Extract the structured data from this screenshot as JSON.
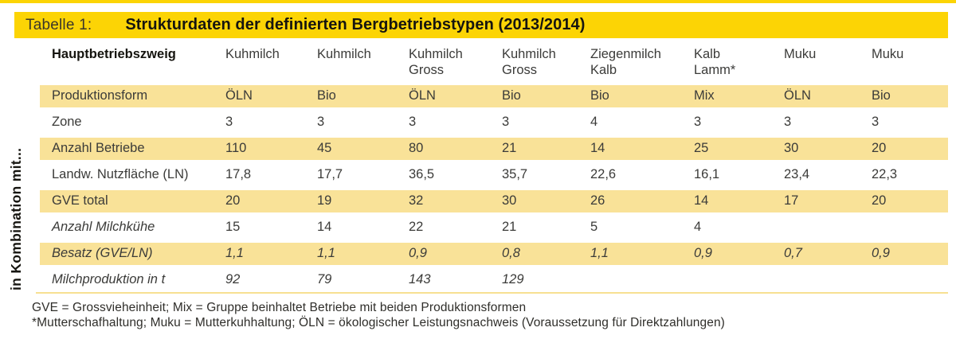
{
  "colors": {
    "accent_yellow": "#fcd405",
    "band_yellow": "#f9e298",
    "separator_yellow": "#f7e092",
    "text_dark": "#3b3b39"
  },
  "title_bar": {
    "label": "Tabelle 1:",
    "title": "Strukturdaten der definierten Bergbetriebstypen (2013/2014)"
  },
  "side_label": "in Kombination mit...",
  "chart_data": {
    "type": "table",
    "title": "Strukturdaten der definierten Bergbetriebstypen (2013/2014)",
    "row_group_label": "in Kombination mit...",
    "header_label": "Hauptbetriebszweig",
    "columns": [
      "Kuhmilch",
      "Kuhmilch",
      "Kuhmilch\nGross",
      "Kuhmilch\nGross",
      "Ziegenmilch\nKalb",
      "Kalb\nLamm*",
      "Muku",
      "Muku"
    ],
    "rows": [
      {
        "label": "Produktionsform",
        "values": [
          "ÖLN",
          "Bio",
          "ÖLN",
          "Bio",
          "Bio",
          "Mix",
          "ÖLN",
          "Bio"
        ],
        "band": true,
        "label_italic": false,
        "values_italic": false
      },
      {
        "label": "Zone",
        "values": [
          "3",
          "3",
          "3",
          "3",
          "4",
          "3",
          "3",
          "3"
        ],
        "band": false,
        "label_italic": false,
        "values_italic": false
      },
      {
        "label": "Anzahl Betriebe",
        "values": [
          "110",
          "45",
          "80",
          "21",
          "14",
          "25",
          "30",
          "20"
        ],
        "band": true,
        "label_italic": false,
        "values_italic": false
      },
      {
        "label": "Landw. Nutzfläche (LN)",
        "values": [
          "17,8",
          "17,7",
          "36,5",
          "35,7",
          "22,6",
          "16,1",
          "23,4",
          "22,3"
        ],
        "band": false,
        "label_italic": false,
        "values_italic": false
      },
      {
        "label": "GVE total",
        "values": [
          "20",
          "19",
          "32",
          "30",
          "26",
          "14",
          "17",
          "20"
        ],
        "band": true,
        "label_italic": false,
        "values_italic": false
      },
      {
        "label": "Anzahl Milchkühe",
        "values": [
          "15",
          "14",
          "22",
          "21",
          "5",
          "4",
          "",
          ""
        ],
        "band": false,
        "label_italic": true,
        "values_italic": false
      },
      {
        "label": "Besatz (GVE/LN)",
        "values": [
          "1,1",
          "1,1",
          "0,9",
          "0,8",
          "1,1",
          "0,9",
          "0,7",
          "0,9"
        ],
        "band": true,
        "label_italic": true,
        "values_italic": true
      },
      {
        "label": "Milchproduktion in t",
        "values": [
          "92",
          "79",
          "143",
          "129",
          "",
          "",
          "",
          ""
        ],
        "band": false,
        "label_italic": true,
        "values_italic": true
      }
    ]
  },
  "footnotes": [
    "GVE = Grossvieheinheit; Mix = Gruppe beinhaltet Betriebe mit beiden Produktionsformen",
    "*Mutterschafhaltung; Muku = Mutterkuhhaltung; ÖLN = ökologischer Leistungsnachweis (Voraussetzung für Direktzahlungen)"
  ]
}
